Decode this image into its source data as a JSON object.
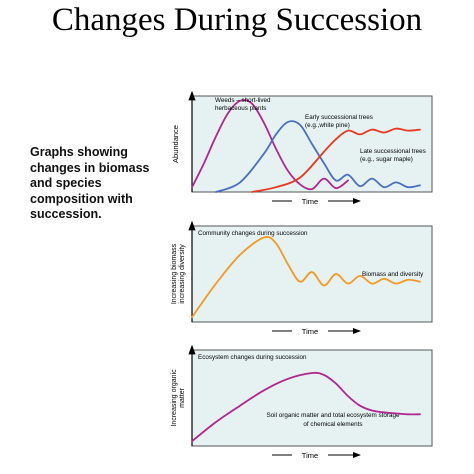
{
  "page_title": "Changes During Succession",
  "description": [
    "Graphs showing",
    "changes in biomass",
    "and species",
    "composition with",
    "succession."
  ],
  "chart_data": [
    {
      "type": "line",
      "ylabel": "Abundance",
      "xlabel": "Time",
      "grid": false,
      "series": [
        {
          "name": "Weeds – short-lived herbaceous plants",
          "color": "#b0268f",
          "x": [
            0,
            0.05,
            0.1,
            0.15,
            0.2,
            0.25,
            0.3,
            0.35,
            0.4,
            0.45,
            0.5,
            0.55,
            0.6,
            0.65
          ],
          "y": [
            0.05,
            0.3,
            0.58,
            0.82,
            0.95,
            0.92,
            0.72,
            0.45,
            0.22,
            0.08,
            0.03,
            0.14,
            0.04,
            0.12
          ]
        },
        {
          "name": "Early successional trees (e.g. white pine)",
          "color": "#4a6fc0",
          "x": [
            0.1,
            0.2,
            0.3,
            0.35,
            0.4,
            0.45,
            0.5,
            0.55,
            0.6,
            0.65,
            0.7,
            0.75,
            0.8,
            0.85,
            0.9,
            0.95
          ],
          "y": [
            0.0,
            0.1,
            0.4,
            0.6,
            0.73,
            0.7,
            0.5,
            0.3,
            0.12,
            0.18,
            0.06,
            0.14,
            0.05,
            0.1,
            0.05,
            0.07
          ]
        },
        {
          "name": "Late successional trees (e.g., sugar maple)",
          "color": "#e8381f",
          "x": [
            0.25,
            0.35,
            0.45,
            0.55,
            0.6,
            0.65,
            0.7,
            0.75,
            0.8,
            0.85,
            0.9,
            0.95
          ],
          "y": [
            0.0,
            0.05,
            0.15,
            0.42,
            0.55,
            0.64,
            0.6,
            0.65,
            0.62,
            0.66,
            0.64,
            0.65
          ]
        }
      ]
    },
    {
      "type": "line",
      "title": "Community changes during succession",
      "ylabel": "Increasing biomass increasing diversity",
      "xlabel": "Time",
      "grid": false,
      "series": [
        {
          "name": "Biomass and diversity",
          "color": "#f09a24",
          "x": [
            0,
            0.1,
            0.2,
            0.3,
            0.35,
            0.4,
            0.45,
            0.5,
            0.55,
            0.6,
            0.65,
            0.7,
            0.75,
            0.8,
            0.85,
            0.9,
            0.95
          ],
          "y": [
            0.05,
            0.4,
            0.7,
            0.88,
            0.82,
            0.6,
            0.42,
            0.52,
            0.38,
            0.5,
            0.4,
            0.48,
            0.4,
            0.45,
            0.4,
            0.44,
            0.42
          ]
        }
      ]
    },
    {
      "type": "line",
      "title": "Ecosystem changes during succession",
      "ylabel": "Increasing organic matter",
      "xlabel": "Time",
      "grid": false,
      "annotation": [
        "Soil organic matter and total ecosystem storage",
        "of chemical elements"
      ],
      "series": [
        {
          "name": "",
          "color": "#b0268f",
          "x": [
            0,
            0.1,
            0.2,
            0.3,
            0.4,
            0.5,
            0.55,
            0.6,
            0.65,
            0.7,
            0.75,
            0.8,
            0.85,
            0.9,
            0.95
          ],
          "y": [
            0.05,
            0.25,
            0.42,
            0.58,
            0.7,
            0.76,
            0.74,
            0.65,
            0.52,
            0.42,
            0.37,
            0.35,
            0.34,
            0.33,
            0.33
          ]
        }
      ]
    }
  ]
}
